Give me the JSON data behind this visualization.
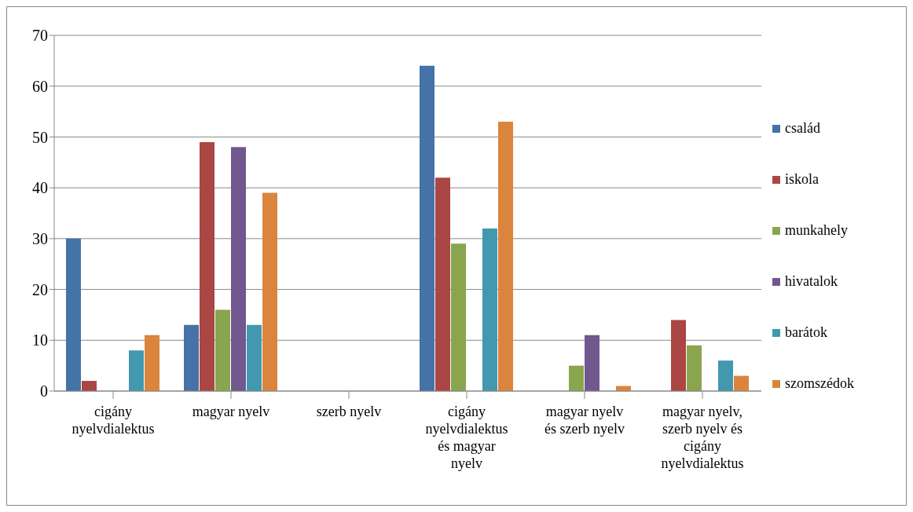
{
  "chart_data": {
    "type": "bar",
    "categories": [
      "cigány nyelvdialektus",
      "magyar nyelv",
      "szerb nyelv",
      "cigány nyelvdialektus és magyar nyelv",
      "magyar nyelv és szerb nyelv",
      "magyar nyelv, szerb nyelv és cigány nyelvdialektus"
    ],
    "series": [
      {
        "name": "család",
        "color": "#4572a7",
        "values": [
          30,
          13,
          0,
          64,
          0,
          0
        ]
      },
      {
        "name": "iskola",
        "color": "#aa4643",
        "values": [
          2,
          49,
          0,
          42,
          0,
          14
        ]
      },
      {
        "name": "munkahely",
        "color": "#89a54e",
        "values": [
          0,
          16,
          0,
          29,
          5,
          9
        ]
      },
      {
        "name": "hivatalok",
        "color": "#71588f",
        "values": [
          0,
          48,
          0,
          0,
          11,
          0
        ]
      },
      {
        "name": "barátok",
        "color": "#4198af",
        "values": [
          8,
          13,
          0,
          32,
          0,
          6
        ]
      },
      {
        "name": "szomszédok",
        "color": "#db843d",
        "values": [
          11,
          39,
          0,
          53,
          1,
          3
        ]
      }
    ],
    "ylim": [
      0,
      70
    ],
    "yticks": [
      0,
      10,
      20,
      30,
      40,
      50,
      60,
      70
    ],
    "grid": "y",
    "legend": "right"
  }
}
